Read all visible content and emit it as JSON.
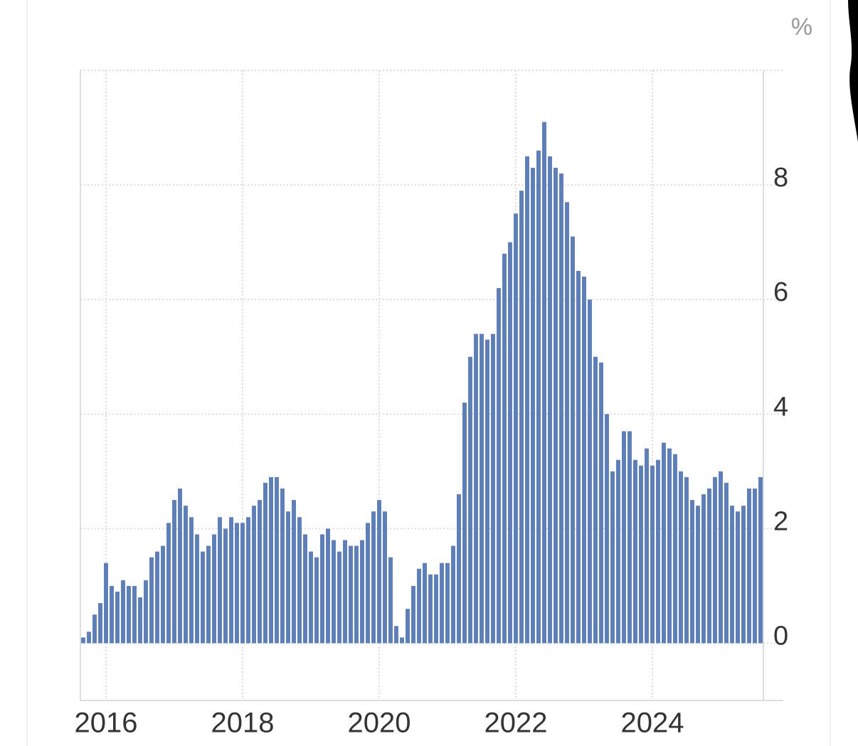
{
  "chart_data": {
    "type": "bar",
    "y_label": "%",
    "categories": [
      null,
      null,
      null,
      null,
      "2016",
      null,
      null,
      null,
      null,
      null,
      null,
      null,
      null,
      null,
      null,
      null,
      null,
      null,
      null,
      null,
      null,
      null,
      null,
      null,
      null,
      null,
      null,
      null,
      "2018",
      null,
      null,
      null,
      null,
      null,
      null,
      null,
      null,
      null,
      null,
      null,
      null,
      null,
      null,
      null,
      null,
      null,
      null,
      null,
      null,
      null,
      null,
      null,
      "2020",
      null,
      null,
      null,
      null,
      null,
      null,
      null,
      null,
      null,
      null,
      null,
      null,
      null,
      null,
      null,
      null,
      null,
      null,
      null,
      null,
      null,
      null,
      null,
      "2022",
      null,
      null,
      null,
      null,
      null,
      null,
      null,
      null,
      null,
      null,
      null,
      null,
      null,
      null,
      null,
      null,
      null,
      null,
      null,
      null,
      null,
      null,
      null,
      "2024",
      null,
      null,
      null,
      null,
      null,
      null,
      null,
      null,
      null,
      null,
      null,
      null,
      null,
      null,
      null,
      null,
      null,
      null,
      null
    ],
    "values": [
      0.1,
      0.2,
      0.5,
      0.7,
      1.4,
      1.0,
      0.9,
      1.1,
      1.0,
      1.0,
      0.8,
      1.1,
      1.5,
      1.6,
      1.7,
      2.1,
      2.5,
      2.7,
      2.4,
      2.2,
      1.9,
      1.6,
      1.7,
      1.9,
      2.2,
      2.0,
      2.2,
      2.1,
      2.1,
      2.2,
      2.4,
      2.5,
      2.8,
      2.9,
      2.9,
      2.7,
      2.3,
      2.5,
      2.2,
      1.9,
      1.6,
      1.5,
      1.9,
      2.0,
      1.8,
      1.6,
      1.8,
      1.7,
      1.7,
      1.8,
      2.1,
      2.3,
      2.5,
      2.3,
      1.5,
      0.3,
      0.1,
      0.6,
      1.0,
      1.3,
      1.4,
      1.2,
      1.2,
      1.4,
      1.4,
      1.7,
      2.6,
      4.2,
      5.0,
      5.4,
      5.4,
      5.3,
      5.4,
      6.2,
      6.8,
      7.0,
      7.5,
      7.9,
      8.5,
      8.3,
      8.6,
      9.1,
      8.5,
      8.3,
      8.2,
      7.7,
      7.1,
      6.5,
      6.4,
      6.0,
      5.0,
      4.9,
      4.0,
      3.0,
      3.2,
      3.7,
      3.7,
      3.2,
      3.1,
      3.4,
      3.1,
      3.2,
      3.5,
      3.4,
      3.3,
      3.0,
      2.9,
      2.5,
      2.4,
      2.6,
      2.7,
      2.9,
      3.0,
      2.8,
      2.4,
      2.3,
      2.4,
      2.7,
      2.7,
      2.9
    ],
    "color": "#5b7fbb",
    "ylim": [
      -1,
      10
    ],
    "yticks": [
      0,
      2,
      4,
      6,
      8
    ],
    "grid": true
  }
}
